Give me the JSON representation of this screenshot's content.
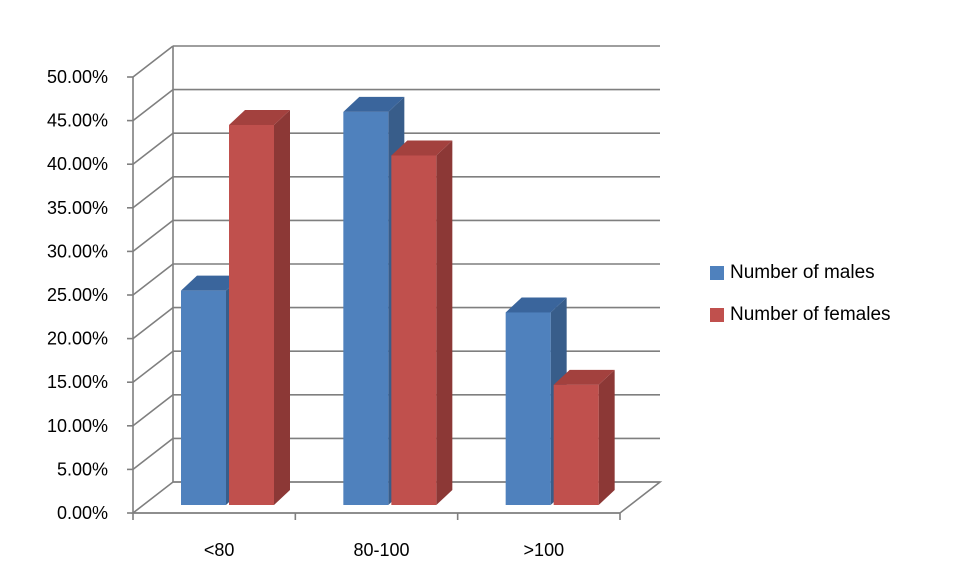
{
  "chart_data": {
    "type": "bar",
    "style": "3d-clustered-column",
    "categories": [
      "<80",
      "80-100",
      ">100"
    ],
    "series": [
      {
        "name": "Number of males",
        "values": [
          25.5,
          46.0,
          23.0
        ],
        "color": "#4F81BD",
        "side_color": "#385D8A",
        "top_color": "#3A659C"
      },
      {
        "name": "Number of females",
        "values": [
          44.5,
          41.0,
          14.7
        ],
        "color": "#C0504D",
        "side_color": "#8C3836",
        "top_color": "#A3413E"
      }
    ],
    "ylim": [
      0,
      50
    ],
    "y_ticks": [
      0,
      5,
      10,
      15,
      20,
      25,
      30,
      35,
      40,
      45,
      50
    ],
    "y_tick_labels": [
      "0.00%",
      "5.00%",
      "10.00%",
      "15.00%",
      "20.00%",
      "25.00%",
      "30.00%",
      "35.00%",
      "40.00%",
      "45.00%",
      "50.00%"
    ],
    "grid": true,
    "legend_position": "right",
    "title": "",
    "xlabel": "",
    "ylabel": ""
  }
}
